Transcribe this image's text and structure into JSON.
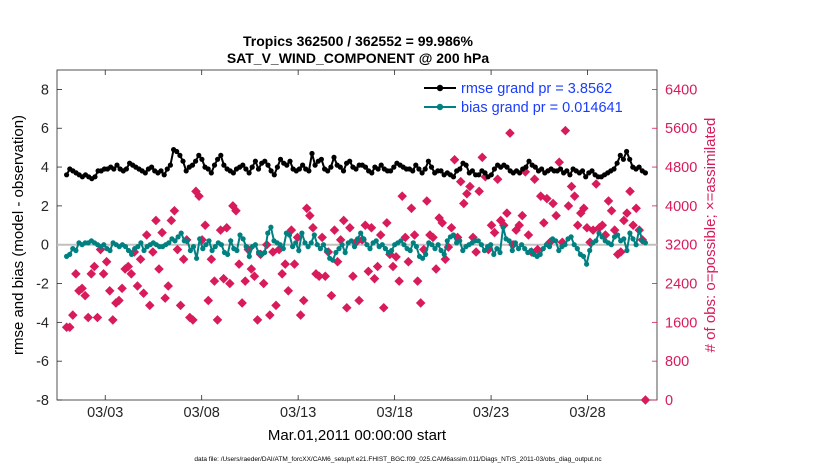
{
  "chart_data": {
    "type": "line",
    "title_line1": "Tropics 362500 / 362552 = 99.986%",
    "title_line2": "SAT_V_WIND_COMPONENT @ 200 hPa",
    "ylabel_left": "rmse and bias (model - observation)",
    "ylabel_right": "# of obs: o=possible; ×=assimilated",
    "xlabel": "Mar.01,2011 00:00:00 start",
    "footnote": "data file: /Users/raeder/DAI/ATM_forcXX/CAM6_setup/f.e21.FHIST_BGC.f09_025.CAM6assim.011/Diags_NTrS_2011-03/obs_diag_output.nc",
    "x_ticks": [
      "03/03",
      "03/08",
      "03/13",
      "03/18",
      "03/23",
      "03/28"
    ],
    "y_left_ticks": [
      "8",
      "6",
      "4",
      "2",
      "0",
      "-2",
      "-4",
      "-6",
      "-8"
    ],
    "y_right_ticks": [
      "6400",
      "5600",
      "4800",
      "4000",
      "3200",
      "2400",
      "1600",
      "800",
      "0"
    ],
    "ylim_left": [
      -8,
      9
    ],
    "ylim_right": [
      0,
      6800
    ],
    "xlim_days": [
      0.5,
      31.6
    ],
    "x_tick_days": [
      3,
      8,
      13,
      18,
      23,
      28
    ],
    "legend": {
      "rmse_label": "rmse grand pr = 3.8562",
      "bias_label": "bias grand pr = 0.014641"
    },
    "colors": {
      "rmse": "#000000",
      "bias": "#008080",
      "obs": "#d81b5a",
      "zero_line": "#c0c0c0",
      "legend_text": "#1a3cff"
    },
    "series": [
      {
        "name": "rmse",
        "values": [
          3.6,
          3.9,
          3.8,
          3.7,
          3.6,
          3.5,
          3.6,
          3.5,
          3.4,
          3.5,
          3.8,
          3.8,
          3.9,
          3.9,
          4.0,
          3.9,
          4.1,
          3.9,
          3.8,
          3.9,
          4.2,
          4.1,
          4.0,
          3.9,
          3.8,
          3.7,
          3.9,
          4.0,
          3.8,
          3.7,
          3.8,
          3.6,
          3.9,
          4.1,
          4.9,
          4.8,
          4.6,
          4.3,
          3.8,
          4.0,
          4.1,
          4.3,
          4.6,
          4.4,
          4.0,
          3.9,
          3.7,
          4.1,
          4.4,
          4.6,
          4.1,
          3.9,
          3.8,
          3.7,
          3.9,
          4.0,
          4.1,
          3.9,
          3.7,
          4.0,
          4.3,
          3.9,
          4.2,
          4.3,
          4.1,
          3.8,
          3.6,
          4.0,
          4.4,
          4.2,
          4.1,
          4.3,
          3.9,
          3.8,
          3.9,
          4.1,
          3.9,
          3.8,
          4.7,
          4.1,
          4.3,
          4.4,
          3.9,
          3.8,
          4.0,
          4.5,
          4.1,
          4.0,
          3.8,
          4.2,
          4.3,
          4.0,
          3.9,
          4.1,
          4.1,
          4.0,
          3.8,
          3.7,
          4.0,
          3.9,
          4.1,
          3.9,
          3.8,
          3.8,
          4.0,
          4.2,
          4.1,
          4.0,
          3.9,
          3.9,
          3.8,
          4.1,
          3.9,
          3.7,
          3.9,
          4.3,
          4.0,
          3.7,
          3.8,
          3.8,
          3.6,
          3.7,
          3.6,
          3.5,
          3.8,
          3.9,
          4.2,
          4.1,
          3.7,
          3.8,
          3.6,
          3.6,
          3.8,
          3.7,
          3.5,
          3.6,
          3.9,
          4.1,
          4.0,
          4.1,
          4.0,
          3.8,
          3.7,
          3.8,
          3.7,
          3.9,
          4.0,
          4.3,
          4.1,
          4.0,
          3.8,
          3.9,
          3.7,
          3.8,
          3.9,
          3.8,
          3.8,
          3.9,
          3.7,
          3.8,
          3.6,
          3.9,
          3.8,
          3.7,
          3.8,
          3.5,
          3.7,
          3.8,
          3.6,
          3.5,
          3.5,
          3.6,
          3.7,
          3.8,
          3.9,
          4.2,
          4.6,
          4.4,
          4.8,
          4.4,
          4.0,
          3.9,
          4.0,
          3.8,
          3.7
        ]
      },
      {
        "name": "bias",
        "values": [
          -0.6,
          -0.5,
          -0.2,
          -0.3,
          0.1,
          0.0,
          0.1,
          0.1,
          0.2,
          0.1,
          0.0,
          -0.1,
          0.0,
          -0.2,
          -0.3,
          0.1,
          0.0,
          -0.1,
          0.0,
          -0.1,
          -0.3,
          -0.5,
          -0.2,
          -0.1,
          0.1,
          -0.3,
          -0.1,
          0.0,
          0.1,
          0.0,
          -0.1,
          -0.1,
          0.0,
          0.1,
          0.3,
          0.2,
          0.4,
          0.6,
          0.2,
          0.2,
          -0.3,
          -0.1,
          -0.7,
          0.3,
          -0.2,
          0.0,
          0.2,
          -0.3,
          -0.1,
          0.1,
          0.0,
          -0.4,
          -0.5,
          0.2,
          -0.2,
          -0.3,
          0.5,
          0.3,
          -0.1,
          -0.6,
          -0.1,
          0.0,
          -0.4,
          -0.5,
          -0.4,
          0.6,
          0.9,
          0.2,
          0.1,
          0.0,
          -0.2,
          0.6,
          0.5,
          -0.1,
          0.1,
          -0.3,
          0.6,
          0.1,
          -0.1,
          0.1,
          0.5,
          0.0,
          -0.2,
          0.0,
          -0.3,
          -0.7,
          -0.8,
          -0.4,
          -0.2,
          0.0,
          -0.4,
          0.1,
          0.2,
          -0.1,
          0.3,
          0.6,
          0.3,
          0.0,
          -0.2,
          0.1,
          0.2,
          -0.1,
          0.0,
          -0.2,
          -0.4,
          -0.3,
          0.0,
          0.1,
          0.2,
          0.0,
          -0.2,
          -0.3,
          0.1,
          -0.1,
          -0.6,
          -0.7,
          -0.5,
          0.1,
          0.0,
          -0.2,
          0.0,
          -0.3,
          -0.5,
          0.2,
          0.4,
          0.5,
          0.1,
          0.2,
          -0.3,
          -0.1,
          0.0,
          0.1,
          0.2,
          0.2,
          0.0,
          -0.3,
          -0.1,
          0.0,
          -0.5,
          -0.2,
          -0.4,
          0.9,
          0.3,
          0.2,
          -0.3,
          0.1,
          -0.2,
          0.0,
          -0.2,
          -0.4,
          -0.3,
          -0.5,
          -0.6,
          -0.5,
          -0.2,
          0.0,
          -0.1,
          0.3,
          0.2,
          -0.3,
          -0.1,
          0.0,
          0.3,
          0.4,
          0.0,
          -0.2,
          -0.5,
          -0.6,
          -1.0,
          -0.3,
          0.1,
          0.2,
          0.6,
          0.4,
          0.2,
          0.1,
          0.0,
          0.4,
          0.5,
          0.2,
          0.3,
          -0.3,
          0.6,
          0.3,
          0.0,
          0.8,
          0.2,
          0.1
        ]
      },
      {
        "name": "observations_assimilated",
        "values": [
          1500,
          1500,
          1750,
          2600,
          2250,
          2300,
          2150,
          1700,
          2600,
          2750,
          1700,
          3100,
          2600,
          2850,
          2250,
          1650,
          2000,
          2050,
          2300,
          2700,
          2750,
          2600,
          3050,
          2350,
          2900,
          2200,
          3400,
          1950,
          3050,
          3700,
          2700,
          3450,
          2100,
          2350,
          3700,
          3900,
          3100,
          1950,
          2900,
          3300,
          1700,
          1650,
          4300,
          4200,
          3300,
          3600,
          2050,
          2900,
          2450,
          1650,
          3500,
          2500,
          3550,
          2400,
          4000,
          3900,
          2800,
          2000,
          2450,
          3100,
          2700,
          2550,
          1650,
          3000,
          2400,
          3200,
          1750,
          3050,
          1950,
          3100,
          2600,
          2800,
          2250,
          3500,
          2800,
          3350,
          1750,
          2050,
          3950,
          3800,
          3550,
          2600,
          2550,
          3350,
          2550,
          3050,
          2150,
          3500,
          2850,
          3300,
          3700,
          1900,
          3550,
          2550,
          3250,
          2050,
          3300,
          3600,
          2650,
          3550,
          2500,
          2750,
          3400,
          1900,
          3650,
          3000,
          2750,
          2950,
          2450,
          4200,
          3350,
          2850,
          3950,
          3400,
          2450,
          2000,
          3100,
          4100,
          3400,
          3350,
          2700,
          3750,
          3650,
          2900,
          3150,
          3550,
          4950,
          3350,
          4500,
          4050,
          4250,
          4400,
          3350,
          3050,
          4300,
          5000,
          4600,
          3100,
          3600,
          3450,
          4550,
          3700,
          3600,
          3850,
          5500,
          3200,
          3500,
          3600,
          3800,
          4700,
          3400,
          3050,
          4550,
          3100,
          4200,
          3650,
          4150,
          3250,
          4050,
          3800,
          4900,
          3250,
          5550,
          4000,
          4400,
          4200,
          3600,
          3850,
          3950,
          3550,
          3250,
          3500,
          4450,
          3550,
          3600,
          3400,
          4100,
          3900,
          3500,
          3000,
          3050,
          3700,
          3850,
          4300,
          3600,
          3950,
          3500,
          3300,
          0
        ]
      }
    ]
  }
}
